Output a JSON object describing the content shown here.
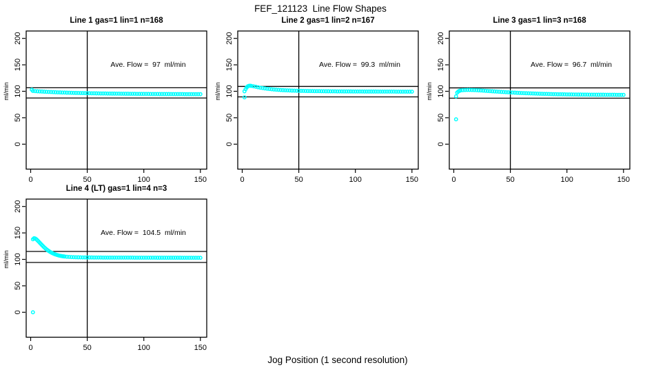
{
  "figure": {
    "title": "FEF_121123  Line Flow Shapes",
    "xlabel": "Jog Position (1 second resolution)",
    "background": "#ffffff",
    "axis_color": "#000000",
    "point_color": "#00ffff"
  },
  "axes": {
    "xticks": [
      0,
      50,
      100,
      150
    ],
    "yticks": [
      0,
      50,
      100,
      150,
      200
    ],
    "ylabel": "ml/min",
    "xlim": [
      0,
      150
    ],
    "ylim": [
      0,
      200
    ],
    "vline_x": 50,
    "grid": "off",
    "legend": "none"
  },
  "chart_data": [
    {
      "type": "scatter",
      "title": "Line 1 gas=1 lin=1 n=168",
      "annotation": "Ave. Flow =  97  ml/min",
      "ave_flow_ml_min": 97,
      "n": 168,
      "tolerance_lines": [
        106.7,
        87.3
      ],
      "vline_x": 50,
      "points": [
        [
          1,
          103
        ],
        [
          2,
          100.6
        ],
        [
          4,
          100.3
        ],
        [
          6,
          100
        ],
        [
          8,
          99.7
        ],
        [
          10,
          99.5
        ],
        [
          12,
          99.2
        ],
        [
          14,
          99
        ],
        [
          16,
          98.8
        ],
        [
          18,
          98.6
        ],
        [
          20,
          98.4
        ],
        [
          22,
          98.2
        ],
        [
          24,
          98
        ],
        [
          26,
          97.9
        ],
        [
          28,
          97.7
        ],
        [
          30,
          97.6
        ],
        [
          32,
          97.4
        ],
        [
          34,
          97.3
        ],
        [
          36,
          97.2
        ],
        [
          38,
          97
        ],
        [
          40,
          96.9
        ],
        [
          42,
          96.8
        ],
        [
          44,
          96.7
        ],
        [
          46,
          96.6
        ],
        [
          48,
          96.5
        ],
        [
          50,
          96.4
        ],
        [
          52,
          96.3
        ],
        [
          54,
          96.2
        ],
        [
          56,
          96.2
        ],
        [
          58,
          96.1
        ],
        [
          60,
          96
        ],
        [
          62,
          95.9
        ],
        [
          64,
          95.9
        ],
        [
          66,
          95.8
        ],
        [
          68,
          95.7
        ],
        [
          70,
          95.7
        ],
        [
          72,
          95.6
        ],
        [
          74,
          95.6
        ],
        [
          76,
          95.5
        ],
        [
          78,
          95.5
        ],
        [
          80,
          95.4
        ],
        [
          82,
          95.4
        ],
        [
          84,
          95.3
        ],
        [
          86,
          95.3
        ],
        [
          88,
          95.2
        ],
        [
          90,
          95.2
        ],
        [
          92,
          95.2
        ],
        [
          94,
          95.1
        ],
        [
          96,
          95.1
        ],
        [
          98,
          95.1
        ],
        [
          100,
          95
        ],
        [
          102,
          95
        ],
        [
          104,
          95
        ],
        [
          106,
          94.9
        ],
        [
          108,
          94.9
        ],
        [
          110,
          94.9
        ],
        [
          112,
          94.9
        ],
        [
          114,
          94.8
        ],
        [
          116,
          94.8
        ],
        [
          118,
          94.8
        ],
        [
          120,
          94.8
        ],
        [
          122,
          94.8
        ],
        [
          124,
          94.7
        ],
        [
          126,
          94.7
        ],
        [
          128,
          94.7
        ],
        [
          130,
          94.7
        ],
        [
          132,
          94.7
        ],
        [
          134,
          94.7
        ],
        [
          136,
          94.6
        ],
        [
          138,
          94.6
        ],
        [
          140,
          94.6
        ],
        [
          142,
          94.6
        ],
        [
          144,
          94.6
        ],
        [
          146,
          94.6
        ],
        [
          148,
          94.6
        ],
        [
          150,
          94.6
        ]
      ]
    },
    {
      "type": "scatter",
      "title": "Line 2 gas=1 lin=2 n=167",
      "annotation": "Ave. Flow =  99.3  ml/min",
      "ave_flow_ml_min": 99.3,
      "n": 167,
      "tolerance_lines": [
        109.2,
        89.4
      ],
      "vline_x": 50,
      "points": [
        [
          2,
          88.5
        ],
        [
          2,
          100
        ],
        [
          3,
          104
        ],
        [
          4,
          107.5
        ],
        [
          5,
          109.5
        ],
        [
          6,
          110.3
        ],
        [
          7,
          110.5
        ],
        [
          8,
          110.2
        ],
        [
          10,
          109.4
        ],
        [
          12,
          108.5
        ],
        [
          14,
          107.6
        ],
        [
          16,
          106.8
        ],
        [
          18,
          106.1
        ],
        [
          20,
          105.4
        ],
        [
          22,
          104.8
        ],
        [
          24,
          104.3
        ],
        [
          26,
          103.8
        ],
        [
          28,
          103.4
        ],
        [
          30,
          103
        ],
        [
          32,
          102.7
        ],
        [
          34,
          102.4
        ],
        [
          36,
          102.1
        ],
        [
          38,
          101.9
        ],
        [
          40,
          101.7
        ],
        [
          42,
          101.5
        ],
        [
          44,
          101.3
        ],
        [
          46,
          101.2
        ],
        [
          48,
          101
        ],
        [
          50,
          100.9
        ],
        [
          52,
          100.8
        ],
        [
          54,
          100.7
        ],
        [
          56,
          100.6
        ],
        [
          58,
          100.5
        ],
        [
          60,
          100.4
        ],
        [
          62,
          100.4
        ],
        [
          64,
          100.3
        ],
        [
          66,
          100.2
        ],
        [
          68,
          100.2
        ],
        [
          70,
          100.1
        ],
        [
          72,
          100.1
        ],
        [
          74,
          100
        ],
        [
          76,
          100
        ],
        [
          78,
          99.9
        ],
        [
          80,
          99.9
        ],
        [
          82,
          99.9
        ],
        [
          84,
          99.8
        ],
        [
          86,
          99.8
        ],
        [
          88,
          99.8
        ],
        [
          90,
          99.7
        ],
        [
          92,
          99.7
        ],
        [
          94,
          99.7
        ],
        [
          96,
          99.7
        ],
        [
          98,
          99.6
        ],
        [
          100,
          99.6
        ],
        [
          102,
          99.6
        ],
        [
          104,
          99.6
        ],
        [
          106,
          99.6
        ],
        [
          108,
          99.5
        ],
        [
          110,
          99.5
        ],
        [
          112,
          99.5
        ],
        [
          114,
          99.5
        ],
        [
          116,
          99.5
        ],
        [
          118,
          99.5
        ],
        [
          120,
          99.4
        ],
        [
          122,
          99.4
        ],
        [
          124,
          99.4
        ],
        [
          126,
          99.4
        ],
        [
          128,
          99.4
        ],
        [
          130,
          99.4
        ],
        [
          132,
          99.4
        ],
        [
          134,
          99.4
        ],
        [
          136,
          99.3
        ],
        [
          138,
          99.3
        ],
        [
          140,
          99.3
        ],
        [
          142,
          99.3
        ],
        [
          144,
          99.3
        ],
        [
          146,
          99.3
        ],
        [
          148,
          99.3
        ],
        [
          150,
          99.3
        ]
      ]
    },
    {
      "type": "scatter",
      "title": "Line 3 gas=1 lin=3 n=168",
      "annotation": "Ave. Flow =  96.7  ml/min",
      "ave_flow_ml_min": 96.7,
      "n": 168,
      "tolerance_lines": [
        106.4,
        87.0
      ],
      "vline_x": 50,
      "points": [
        [
          2,
          47
        ],
        [
          2,
          90.5
        ],
        [
          3,
          97.5
        ],
        [
          4,
          99.5
        ],
        [
          5,
          100.8
        ],
        [
          6,
          101.5
        ],
        [
          8,
          102.1
        ],
        [
          10,
          102.4
        ],
        [
          12,
          102.5
        ],
        [
          14,
          102.5
        ],
        [
          16,
          102.4
        ],
        [
          18,
          102.2
        ],
        [
          20,
          102
        ],
        [
          22,
          101.8
        ],
        [
          24,
          101.5
        ],
        [
          26,
          101.2
        ],
        [
          28,
          100.9
        ],
        [
          30,
          100.6
        ],
        [
          32,
          100.3
        ],
        [
          34,
          100
        ],
        [
          36,
          99.7
        ],
        [
          38,
          99.4
        ],
        [
          40,
          99.1
        ],
        [
          42,
          98.8
        ],
        [
          44,
          98.6
        ],
        [
          46,
          98.3
        ],
        [
          48,
          98.1
        ],
        [
          50,
          97.8
        ],
        [
          52,
          97.6
        ],
        [
          54,
          97.4
        ],
        [
          56,
          97.1
        ],
        [
          58,
          96.9
        ],
        [
          60,
          96.7
        ],
        [
          62,
          96.5
        ],
        [
          64,
          96.3
        ],
        [
          66,
          96.2
        ],
        [
          68,
          96
        ],
        [
          70,
          95.8
        ],
        [
          72,
          95.7
        ],
        [
          74,
          95.5
        ],
        [
          76,
          95.4
        ],
        [
          78,
          95.2
        ],
        [
          80,
          95.1
        ],
        [
          82,
          95
        ],
        [
          84,
          94.9
        ],
        [
          86,
          94.7
        ],
        [
          88,
          94.6
        ],
        [
          90,
          94.5
        ],
        [
          92,
          94.4
        ],
        [
          94,
          94.4
        ],
        [
          96,
          94.3
        ],
        [
          98,
          94.2
        ],
        [
          100,
          94.1
        ],
        [
          102,
          94.1
        ],
        [
          104,
          94
        ],
        [
          106,
          93.9
        ],
        [
          108,
          93.9
        ],
        [
          110,
          93.8
        ],
        [
          112,
          93.8
        ],
        [
          114,
          93.7
        ],
        [
          116,
          93.7
        ],
        [
          118,
          93.7
        ],
        [
          120,
          93.6
        ],
        [
          122,
          93.6
        ],
        [
          124,
          93.6
        ],
        [
          126,
          93.5
        ],
        [
          128,
          93.5
        ],
        [
          130,
          93.5
        ],
        [
          132,
          93.5
        ],
        [
          134,
          93.4
        ],
        [
          136,
          93.4
        ],
        [
          138,
          93.4
        ],
        [
          140,
          93.4
        ],
        [
          142,
          93.4
        ],
        [
          144,
          93.3
        ],
        [
          146,
          93.3
        ],
        [
          148,
          93.3
        ],
        [
          150,
          93.3
        ]
      ]
    },
    {
      "type": "scatter",
      "title": "Line 4 (LT) gas=1 lin=4 n=3",
      "annotation": "Ave. Flow =  104.5  ml/min",
      "ave_flow_ml_min": 104.5,
      "n": 3,
      "tolerance_lines": [
        115.0,
        94.1
      ],
      "vline_x": 50,
      "points": [
        [
          2,
          0
        ],
        [
          2,
          138
        ],
        [
          3,
          140
        ],
        [
          4,
          139.5
        ],
        [
          5,
          138
        ],
        [
          6,
          136
        ],
        [
          7,
          133.8
        ],
        [
          8,
          131.5
        ],
        [
          9,
          129.2
        ],
        [
          10,
          127
        ],
        [
          11,
          124.8
        ],
        [
          12,
          122.7
        ],
        [
          13,
          120.8
        ],
        [
          14,
          119
        ],
        [
          15,
          117.3
        ],
        [
          16,
          115.8
        ],
        [
          17,
          114.4
        ],
        [
          18,
          113.1
        ],
        [
          19,
          112
        ],
        [
          20,
          111
        ],
        [
          21,
          110.1
        ],
        [
          22,
          109.3
        ],
        [
          23,
          108.5
        ],
        [
          24,
          107.9
        ],
        [
          25,
          107.3
        ],
        [
          26,
          106.8
        ],
        [
          27,
          106.4
        ],
        [
          28,
          106
        ],
        [
          29,
          105.7
        ],
        [
          30,
          105.4
        ],
        [
          32,
          104.9
        ],
        [
          34,
          104.6
        ],
        [
          36,
          104.3
        ],
        [
          38,
          104.1
        ],
        [
          40,
          104
        ],
        [
          42,
          103.9
        ],
        [
          44,
          103.8
        ],
        [
          46,
          103.7
        ],
        [
          48,
          103.7
        ],
        [
          50,
          103.6
        ],
        [
          52,
          103.6
        ],
        [
          54,
          103.6
        ],
        [
          56,
          103.5
        ],
        [
          58,
          103.5
        ],
        [
          60,
          103.5
        ],
        [
          62,
          103.5
        ],
        [
          64,
          103.4
        ],
        [
          66,
          103.4
        ],
        [
          68,
          103.4
        ],
        [
          70,
          103.4
        ],
        [
          72,
          103.4
        ],
        [
          74,
          103.4
        ],
        [
          76,
          103.3
        ],
        [
          78,
          103.3
        ],
        [
          80,
          103.3
        ],
        [
          82,
          103.3
        ],
        [
          84,
          103.3
        ],
        [
          86,
          103.3
        ],
        [
          88,
          103.3
        ],
        [
          90,
          103.3
        ],
        [
          92,
          103.2
        ],
        [
          94,
          103.2
        ],
        [
          96,
          103.2
        ],
        [
          98,
          103.2
        ],
        [
          100,
          103.2
        ],
        [
          102,
          103.2
        ],
        [
          104,
          103.2
        ],
        [
          106,
          103.2
        ],
        [
          108,
          103.2
        ],
        [
          110,
          103.2
        ],
        [
          112,
          103.1
        ],
        [
          114,
          103.1
        ],
        [
          116,
          103.1
        ],
        [
          118,
          103.1
        ],
        [
          120,
          103.1
        ],
        [
          122,
          103.1
        ],
        [
          124,
          103.1
        ],
        [
          126,
          103.1
        ],
        [
          128,
          103.1
        ],
        [
          130,
          103.1
        ],
        [
          132,
          103.1
        ],
        [
          134,
          103
        ],
        [
          136,
          103
        ],
        [
          138,
          103
        ],
        [
          140,
          103
        ],
        [
          142,
          103
        ],
        [
          144,
          103
        ],
        [
          146,
          103
        ],
        [
          148,
          103
        ],
        [
          150,
          103
        ]
      ]
    }
  ]
}
